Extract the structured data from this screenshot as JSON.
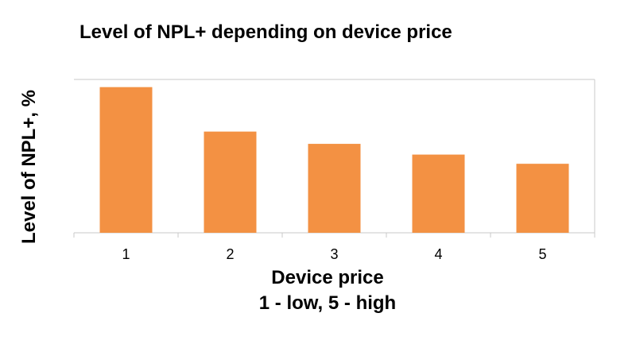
{
  "chart_data": {
    "type": "bar",
    "title": "Level of NPL+ depending on device price",
    "xlabel": "Device price",
    "xlabel_sub": "1 - low, 5 - high",
    "ylabel": "Level of NPL+, %",
    "categories": [
      "1",
      "2",
      "3",
      "4",
      "5"
    ],
    "values": [
      95,
      66,
      58,
      51,
      45
    ],
    "ylim": [
      0,
      100
    ],
    "bar_color": "#F39143",
    "axis_color": "#C8C8C8",
    "grid": false,
    "legend": "none"
  }
}
